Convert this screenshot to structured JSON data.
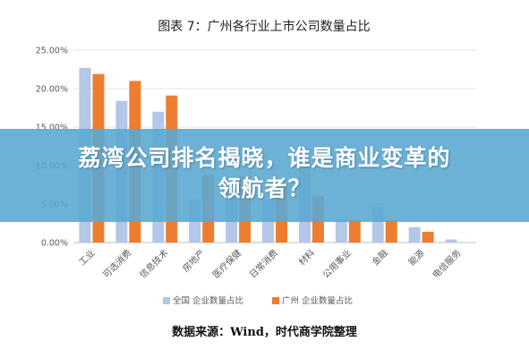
{
  "chart_data": {
    "type": "bar",
    "title": "图表 7：广州各行业上市公司数量占比",
    "categories": [
      "工业",
      "可选消费",
      "信息技术",
      "房地产",
      "医疗保健",
      "日常消费",
      "材料",
      "公用事业",
      "金融",
      "能源",
      "电信服务"
    ],
    "series": [
      {
        "name": "全国 企业数量占比",
        "color": "#b4c7e7",
        "values": [
          22.7,
          18.4,
          17.0,
          5.6,
          7.0,
          5.5,
          10.5,
          3.0,
          4.6,
          2.0,
          0.4
        ]
      },
      {
        "name": "广州 企业数量占比",
        "color": "#ed7d31",
        "values": [
          21.9,
          21.0,
          19.1,
          8.8,
          8.6,
          7.5,
          6.0,
          2.9,
          2.9,
          1.4,
          0.0
        ]
      }
    ],
    "yticks": [
      "0.00%",
      "5.00%",
      "10.00%",
      "15.00%",
      "20.00%",
      "25.00%"
    ],
    "ylim": [
      0,
      25
    ],
    "grid": true,
    "legend": "bottom"
  },
  "overlay": {
    "headline_line1": "荔湾公司排名揭晓，谁是商业变革的",
    "headline_line2": "领航者？"
  },
  "footer": {
    "source": "数据来源：Wind，时代商学院整理"
  }
}
